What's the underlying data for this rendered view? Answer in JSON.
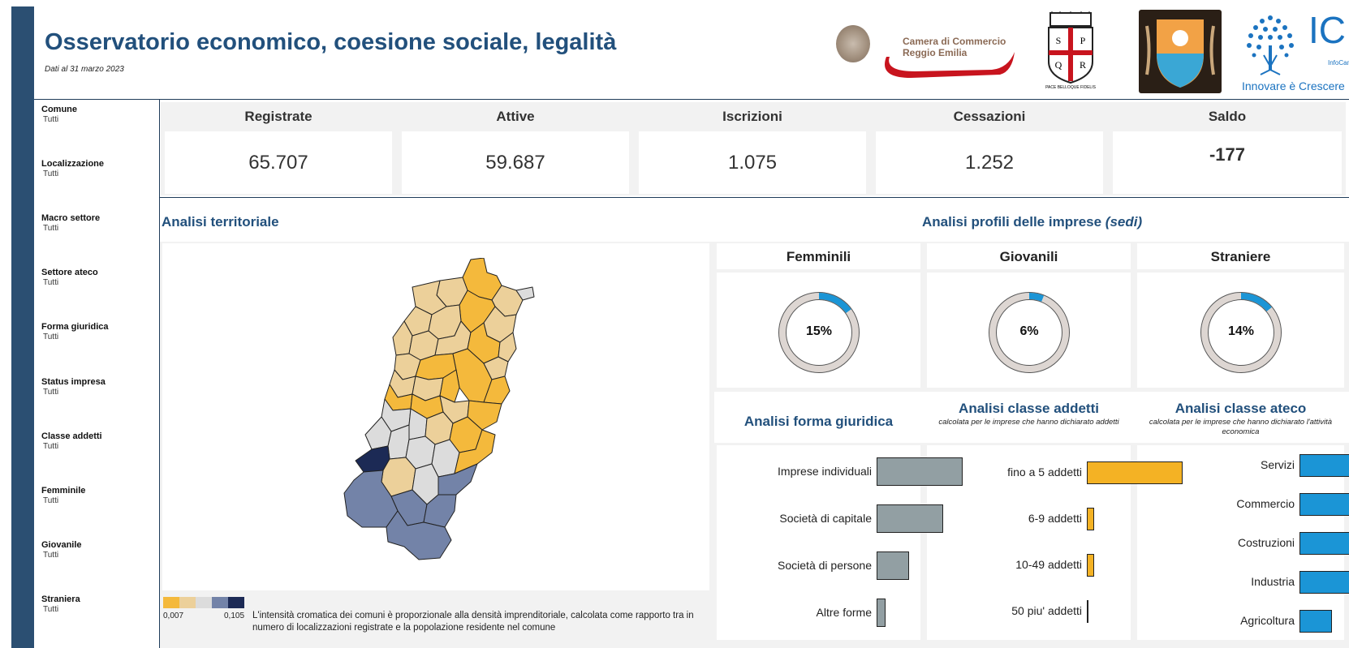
{
  "header": {
    "title": "Osservatorio economico, coesione sociale, legalità",
    "subtitle": "Dati al 31 marzo 2023"
  },
  "logos": {
    "ccre_line1": "Camera di Commercio",
    "ccre_line2": "Reggio Emilia",
    "sprq": [
      "S",
      "P",
      "Q",
      "R"
    ],
    "sprq_motto": "PACE  BELLOQUE  FIDELIS",
    "ic_letters": "IC",
    "ic_small": "InfoCamere",
    "ic_tagline": "Innovare è Crescere"
  },
  "filters": [
    {
      "label": "Comune",
      "value": "Tutti"
    },
    {
      "label": "Localizzazione",
      "value": "Tutti"
    },
    {
      "label": "Macro settore",
      "value": "Tutti"
    },
    {
      "label": "Settore ateco",
      "value": "Tutti"
    },
    {
      "label": "Forma giuridica",
      "value": "Tutti"
    },
    {
      "label": "Status impresa",
      "value": "Tutti"
    },
    {
      "label": "Classe addetti",
      "value": "Tutti"
    },
    {
      "label": "Femminile",
      "value": "Tutti"
    },
    {
      "label": "Giovanile",
      "value": "Tutti"
    },
    {
      "label": "Straniera",
      "value": "Tutti"
    }
  ],
  "kpis": [
    {
      "label": "Registrate",
      "value": "65.707"
    },
    {
      "label": "Attive",
      "value": "59.687"
    },
    {
      "label": "Iscrizioni",
      "value": "1.075"
    },
    {
      "label": "Cessazioni",
      "value": "1.252"
    },
    {
      "label": "Saldo",
      "value": "-177"
    }
  ],
  "territorial": {
    "title": "Analisi territoriale",
    "legend_min": "0,007",
    "legend_max": "0,105",
    "legend_colors": [
      "#f4b93c",
      "#ecd09a",
      "#dcdcdc",
      "#7383a8",
      "#1c2a55"
    ],
    "note": "L'intensità cromatica dei comuni è proporzionale alla densità imprenditoriale, calcolata come rapporto tra in numero di localizzazioni registrate e la popolazione residente nel comune"
  },
  "profiles": {
    "title_prefix": "Analisi profili delle imprese ",
    "title_em": "(sedi)",
    "gauges": [
      {
        "label": "Femminili",
        "percent_text": "15%",
        "percent": 15
      },
      {
        "label": "Giovanili",
        "percent_text": "6%",
        "percent": 6
      },
      {
        "label": "Straniere",
        "percent_text": "14%",
        "percent": 14
      }
    ],
    "gauge_color": "#1b95d6",
    "gauge_track": "#ddd6d2"
  },
  "chart_data": [
    {
      "type": "bar",
      "title": "Analisi forma giuridica",
      "categories": [
        "Imprese individuali",
        "Società di capitale",
        "Società di persone",
        "Altre forme"
      ],
      "values": [
        100,
        77,
        38,
        10
      ],
      "color": "#929fa3"
    },
    {
      "type": "bar",
      "title": "Analisi classe addetti",
      "subtitle": "calcolata per le imprese che hanno dichiarato addetti",
      "categories": [
        "fino a 5 addetti",
        "6-9 addetti",
        "10-49 addetti",
        "50 piu' addetti"
      ],
      "values": [
        100,
        8,
        8,
        2
      ],
      "color": "#f4b224"
    },
    {
      "type": "bar",
      "title": "Analisi classe ateco",
      "subtitle": "calcolata per le imprese che hanno dichiarato l'attività economica",
      "categories": [
        "Servizi",
        "Commercio",
        "Costruzioni",
        "Industria",
        "Agricoltura"
      ],
      "values": [
        100,
        63,
        57,
        45,
        28
      ],
      "color": "#1b95d6"
    }
  ]
}
